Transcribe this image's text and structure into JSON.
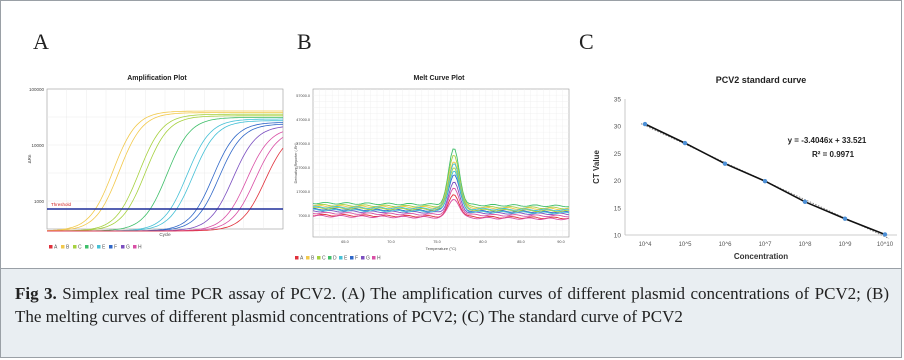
{
  "panels": {
    "a": {
      "letter": "A"
    },
    "b": {
      "letter": "B"
    },
    "c": {
      "letter": "C"
    }
  },
  "caption": {
    "label": "Fig 3.",
    "text": " Simplex real time PCR assay of PCV2. (A) The amplification curves of different plasmid concentrations of PCV2; (B) The melting curves of different plasmid concentrations of PCV2; (C) The standard curve of PCV2"
  },
  "chart_data": [
    {
      "type": "line",
      "title": "Amplification Plot",
      "xlabel": "Cycle",
      "ylabel": "ΔRn",
      "y_scale": "log",
      "ytick_labels": [
        "100000",
        "10000",
        "1000"
      ],
      "threshold_label": "Threshold",
      "legend": [
        "A",
        "B",
        "C",
        "D",
        "E",
        "F",
        "G",
        "H"
      ],
      "colors": {
        "A": "#e0303b",
        "B": "#f2c94c",
        "C": "#a6d13f",
        "D": "#3fbf6a",
        "E": "#45c0d6",
        "F": "#2f67c8",
        "G": "#7b4fc0",
        "H": "#d94fa5",
        "threshold": "#1f2f9a"
      }
    },
    {
      "type": "line",
      "title": "Melt Curve Plot",
      "xlabel": "Temperature (°C)",
      "ylabel": "Derivative Reporter (-Rn')",
      "ytick_labels": [
        "57000.0",
        "47000.0",
        "37000.0",
        "27000.0",
        "17000.0",
        "7000.0"
      ],
      "xtick_labels": [
        "65.0",
        "70.0",
        "75.0",
        "80.0",
        "85.0",
        "90.0"
      ],
      "legend": [
        "A",
        "B",
        "C",
        "D",
        "E",
        "F",
        "G",
        "H"
      ]
    },
    {
      "type": "scatter",
      "title": "PCV2 standard curve",
      "xlabel": "Concentration",
      "ylabel": "CT Value",
      "categories": [
        "10^4",
        "10^5",
        "10^6",
        "10^7",
        "10^8",
        "10^9",
        "10^10"
      ],
      "values": [
        30.4,
        26.9,
        23.1,
        19.9,
        16.1,
        13.0,
        10.1
      ],
      "ylim": [
        10,
        35
      ],
      "yticks": [
        10,
        15,
        20,
        25,
        30,
        35
      ],
      "equation": "y = -3.4046x + 33.521",
      "r_squared": "R² = 0.9971",
      "colors": {
        "point": "#4c8fd6",
        "line": "#111111",
        "trend": "#888888"
      }
    }
  ]
}
